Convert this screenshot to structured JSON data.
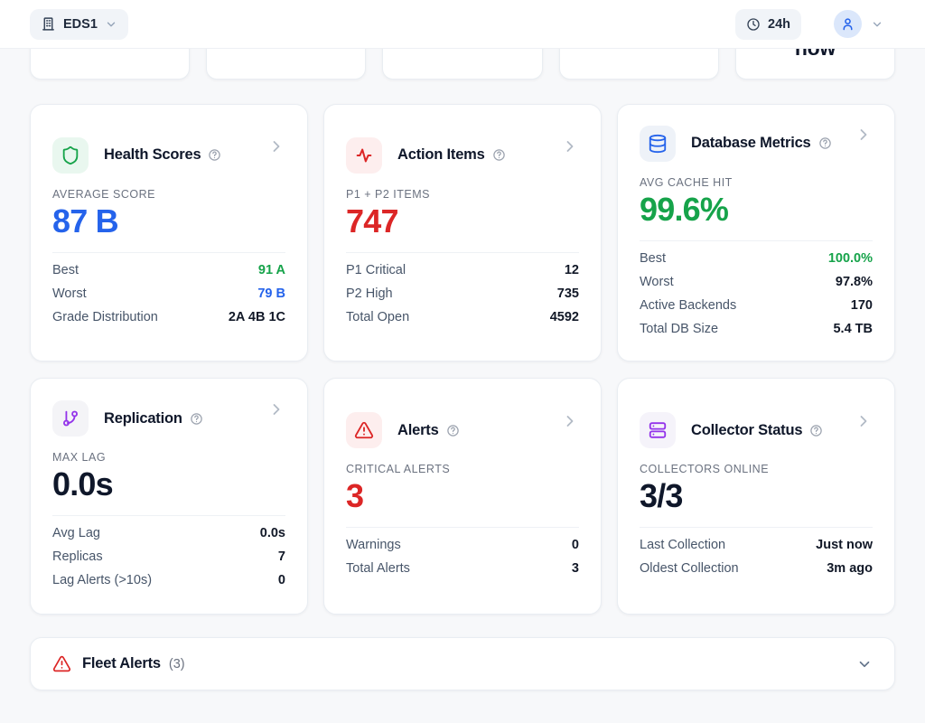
{
  "topbar": {
    "org": {
      "label": "EDS1"
    },
    "time_range": {
      "label": "24h"
    }
  },
  "stat_strip": {
    "card_count": 5,
    "visible_value": "now"
  },
  "cards": [
    {
      "id": "health-scores",
      "title": "Health Scores",
      "icon": "shield-icon",
      "icon_color": "#16a34a",
      "icon_bg": "#e9f7ef",
      "metric_label": "AVERAGE SCORE",
      "metric_value": "87 B",
      "metric_color": "#2563eb",
      "rows": [
        {
          "label": "Best",
          "value": "91 A",
          "color": "#16a34a"
        },
        {
          "label": "Worst",
          "value": "79 B",
          "color": "#2563eb"
        },
        {
          "label": "Grade Distribution",
          "value": "2A 4B 1C"
        }
      ]
    },
    {
      "id": "action-items",
      "title": "Action Items",
      "icon": "activity-icon",
      "icon_color": "#dc2626",
      "icon_bg": "#fdeeee",
      "metric_label": "P1 + P2 ITEMS",
      "metric_value": "747",
      "metric_color": "#dc2626",
      "rows": [
        {
          "label": "P1 Critical",
          "value": "12"
        },
        {
          "label": "P2 High",
          "value": "735"
        },
        {
          "label": "Total Open",
          "value": "4592"
        }
      ]
    },
    {
      "id": "database-metrics",
      "title": "Database Metrics",
      "icon": "database-icon",
      "icon_color": "#2563eb",
      "icon_bg": "#eef2f8",
      "metric_label": "AVG CACHE HIT",
      "metric_value": "99.6%",
      "metric_color": "#16a34a",
      "rows": [
        {
          "label": "Best",
          "value": "100.0%",
          "color": "#16a34a"
        },
        {
          "label": "Worst",
          "value": "97.8%"
        },
        {
          "label": "Active Backends",
          "value": "170"
        },
        {
          "label": "Total DB Size",
          "value": "5.4 TB"
        }
      ]
    },
    {
      "id": "replication",
      "title": "Replication",
      "icon": "git-branch-icon",
      "icon_color": "#9333ea",
      "icon_bg": "#f4f4f7",
      "metric_label": "MAX LAG",
      "metric_value": "0.0s",
      "metric_color": "#0f172a",
      "rows": [
        {
          "label": "Avg Lag",
          "value": "0.0s"
        },
        {
          "label": "Replicas",
          "value": "7"
        },
        {
          "label": "Lag Alerts (>10s)",
          "value": "0"
        }
      ]
    },
    {
      "id": "alerts",
      "title": "Alerts",
      "icon": "alert-triangle-icon",
      "icon_color": "#dc2626",
      "icon_bg": "#fdeeee",
      "metric_label": "CRITICAL ALERTS",
      "metric_value": "3",
      "metric_color": "#dc2626",
      "rows": [
        {
          "label": "Warnings",
          "value": "0"
        },
        {
          "label": "Total Alerts",
          "value": "3"
        }
      ]
    },
    {
      "id": "collector-status",
      "title": "Collector Status",
      "icon": "server-stack-icon",
      "icon_color": "#9333ea",
      "icon_bg": "#f5f3fa",
      "metric_label": "COLLECTORS ONLINE",
      "metric_value": "3/3",
      "metric_color": "#0f172a",
      "rows": [
        {
          "label": "Last Collection",
          "value": "Just now"
        },
        {
          "label": "Oldest Collection",
          "value": "3m ago"
        }
      ]
    }
  ],
  "fleet_alerts": {
    "title": "Fleet Alerts",
    "count": "(3)"
  },
  "colors": {
    "page_bg": "#f7f8fa",
    "card_bg": "#ffffff",
    "accent_blue": "#2563eb",
    "accent_red": "#dc2626",
    "accent_green": "#16a34a",
    "accent_purple": "#9333ea"
  }
}
